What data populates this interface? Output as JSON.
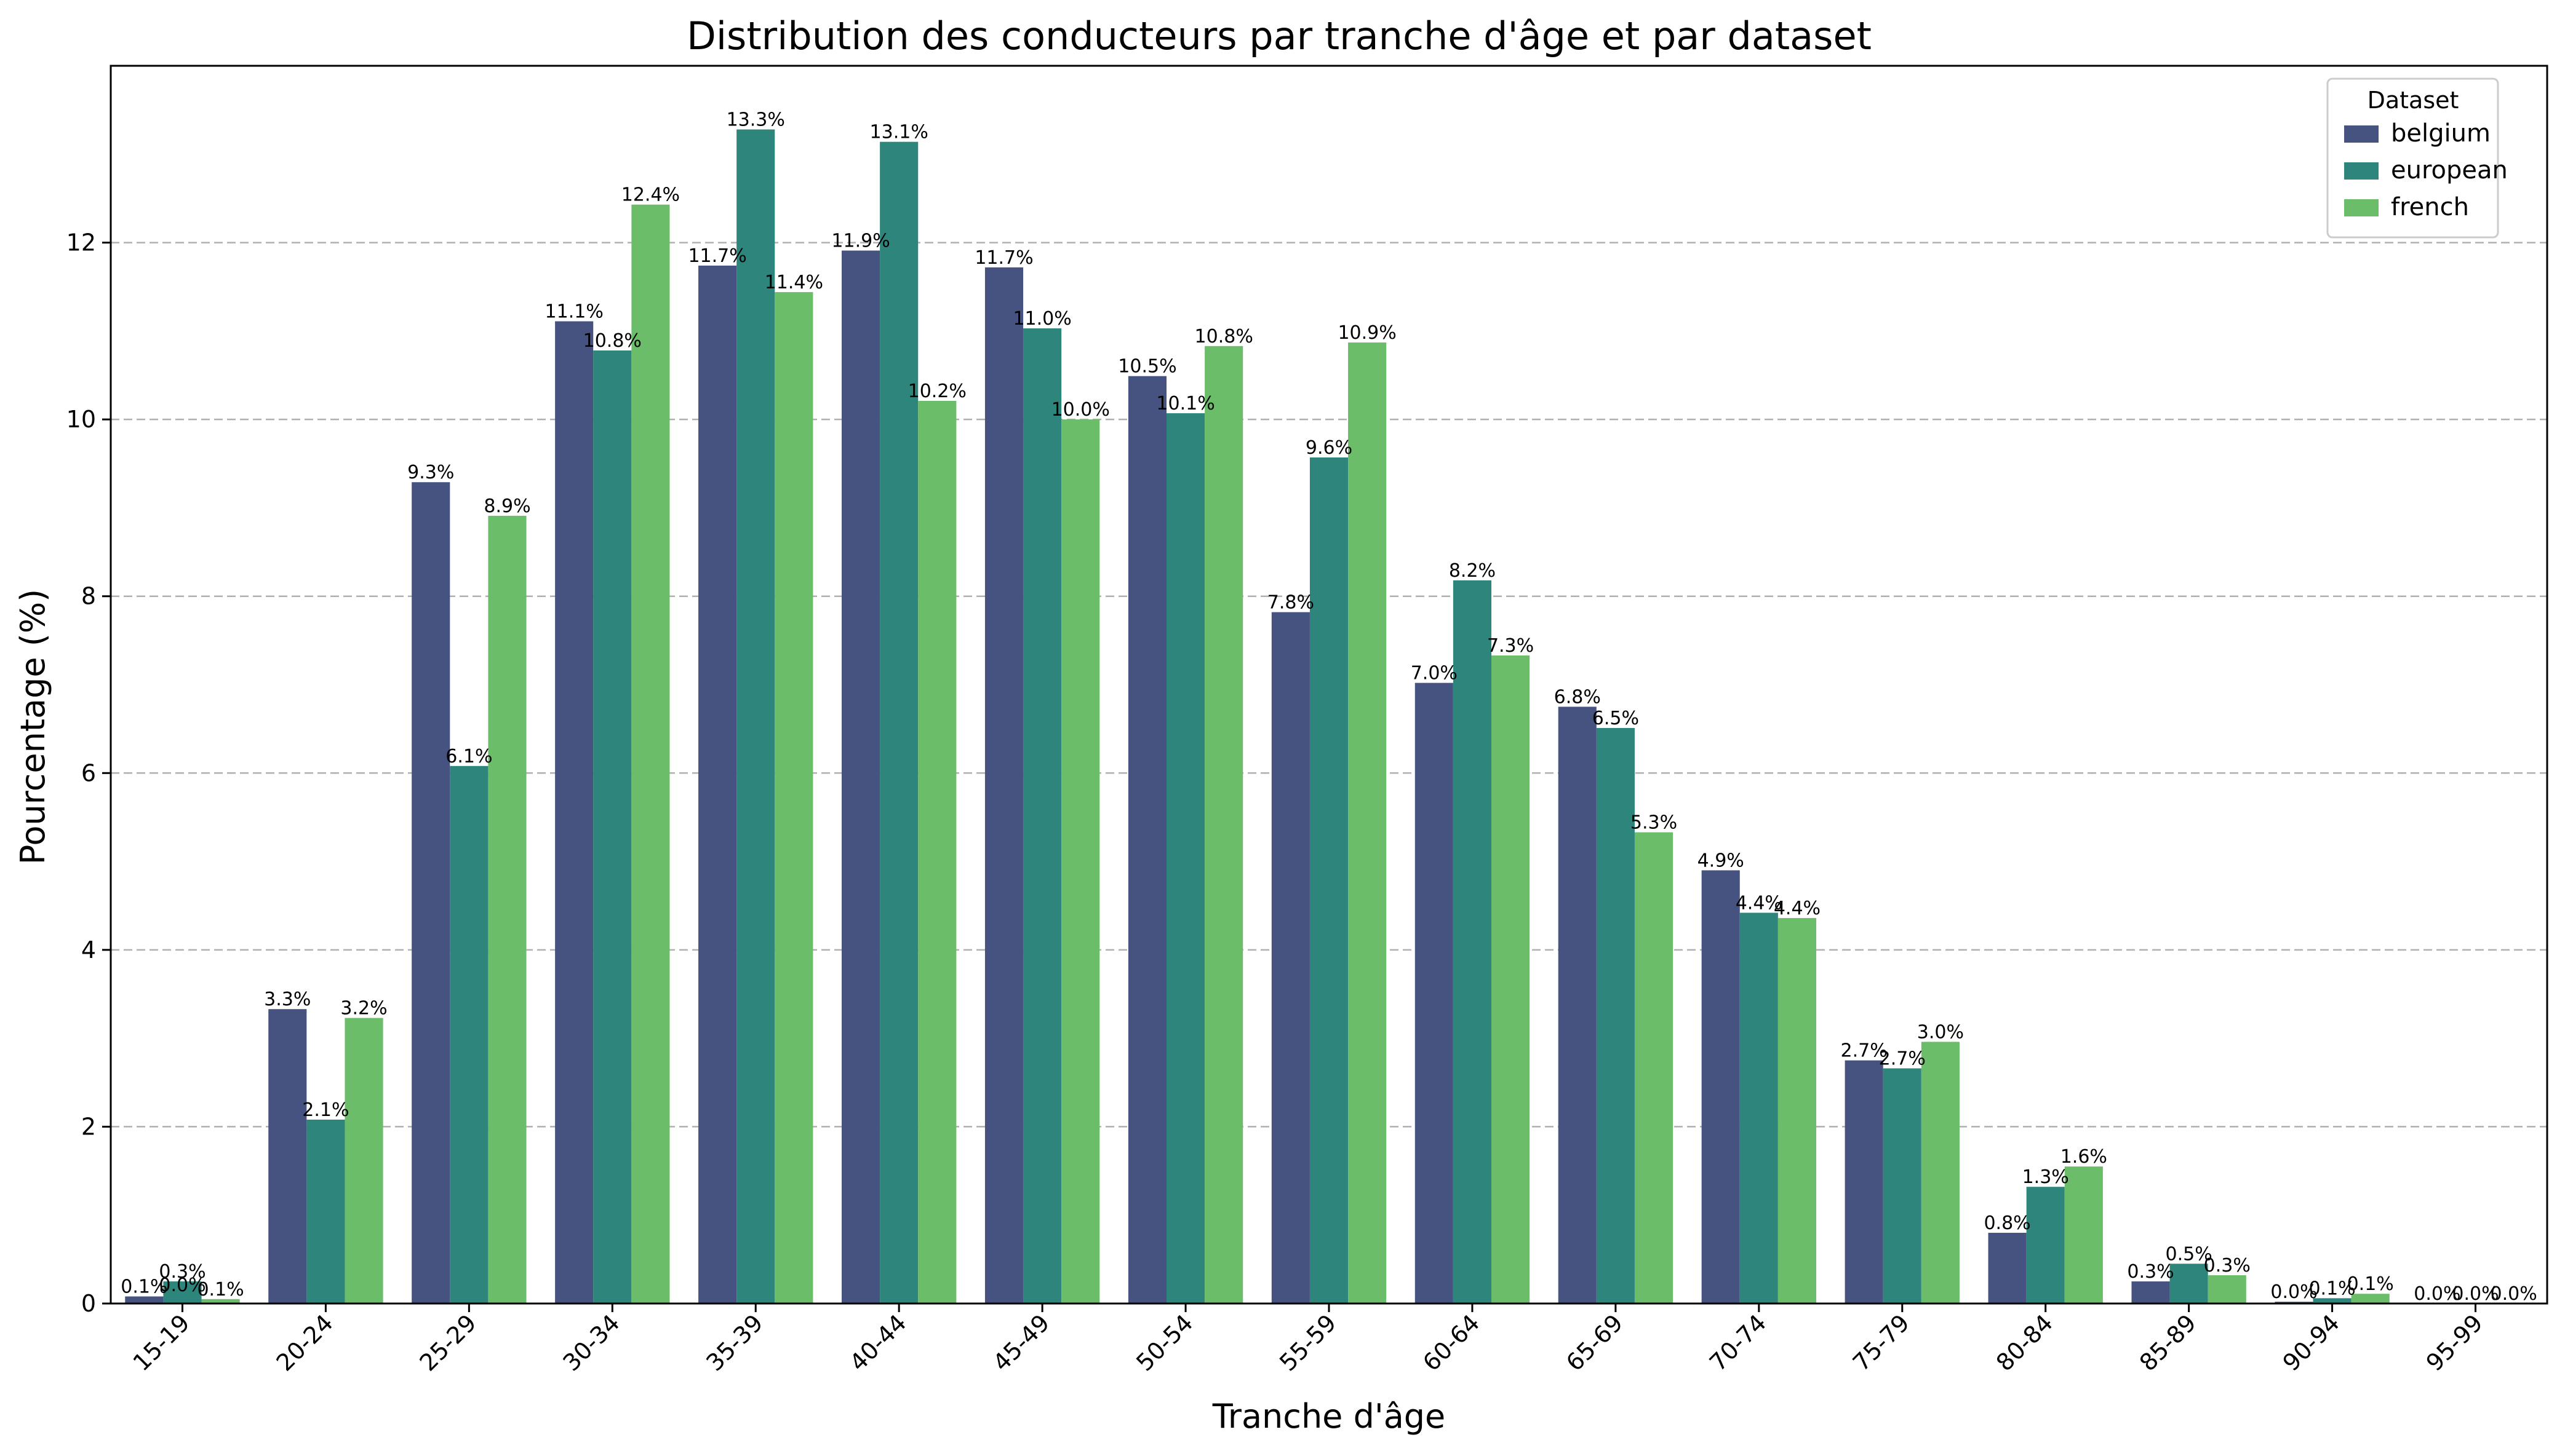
{
  "chart_data": {
    "type": "bar",
    "title": "Distribution des conducteurs par tranche d'âge et par dataset",
    "xlabel": "Tranche d'âge",
    "ylabel": "Pourcentage (%)",
    "ylim": [
      0,
      14
    ],
    "yticks": [
      0,
      2,
      4,
      6,
      8,
      10,
      12
    ],
    "grid": "y-dashed",
    "legend": {
      "title": "Dataset",
      "placement": "top-right"
    },
    "categories": [
      "15-19",
      "20-24",
      "25-29",
      "30-34",
      "35-39",
      "40-44",
      "45-49",
      "50-54",
      "55-59",
      "60-64",
      "65-69",
      "70-74",
      "75-79",
      "80-84",
      "85-89",
      "90-94",
      "95-99"
    ],
    "series": [
      {
        "name": "belgium",
        "color": "#46527f",
        "values": [
          0.08,
          3.33,
          9.29,
          11.11,
          11.74,
          11.91,
          11.72,
          10.49,
          7.82,
          7.02,
          6.75,
          4.9,
          2.75,
          0.8,
          0.25,
          0.02,
          0.0
        ],
        "labels": [
          "0.1%",
          "3.3%",
          "9.3%",
          "11.1%",
          "11.7%",
          "11.9%",
          "11.7%",
          "10.5%",
          "7.8%",
          "7.0%",
          "6.8%",
          "4.9%",
          "2.7%",
          "0.8%",
          "0.3%",
          "0.0%",
          "0.0%"
        ]
      },
      {
        "name": "european",
        "color": "#2d857b",
        "values": [
          0.25,
          2.08,
          6.08,
          10.78,
          13.28,
          13.14,
          11.03,
          10.07,
          9.57,
          8.18,
          6.51,
          4.42,
          2.66,
          1.32,
          0.45,
          0.06,
          0.0
        ],
        "labels": [
          "0.3%",
          "2.1%",
          "6.1%",
          "10.8%",
          "13.3%",
          "13.1%",
          "11.0%",
          "10.1%",
          "9.6%",
          "8.2%",
          "6.5%",
          "4.4%",
          "2.7%",
          "1.3%",
          "0.5%",
          "0.1%",
          "0.0%"
        ]
      },
      {
        "name": "french",
        "color": "#6cbd6a",
        "values": [
          0.05,
          3.23,
          8.91,
          12.43,
          11.44,
          10.21,
          10.0,
          10.83,
          10.87,
          7.33,
          5.33,
          4.36,
          2.96,
          1.55,
          0.32,
          0.11,
          0.0
        ],
        "labels": [
          "0.1%",
          "3.2%",
          "8.9%",
          "12.4%",
          "11.4%",
          "10.2%",
          "10.0%",
          "10.8%",
          "10.9%",
          "7.3%",
          "5.3%",
          "4.4%",
          "3.0%",
          "1.6%",
          "0.3%",
          "0.1%",
          "0.0%"
        ]
      }
    ],
    "extra_labels": [
      {
        "category_index": 0,
        "text": "0.0%"
      }
    ]
  }
}
